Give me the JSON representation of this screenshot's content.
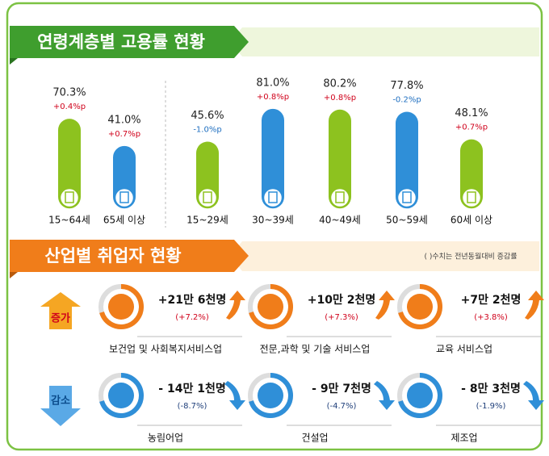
{
  "chart_data": {
    "type": "bar",
    "title": "연령계층별 고용률 현황",
    "categories": [
      "15~64세",
      "65세 이상",
      "15~29세",
      "30~39세",
      "40~49세",
      "50~59세",
      "60세 이상"
    ],
    "values": [
      70.3,
      41.0,
      45.6,
      81.0,
      80.2,
      77.8,
      48.1
    ],
    "value_labels": [
      "70.3%",
      "41.0%",
      "45.6%",
      "81.0%",
      "80.2%",
      "77.8%",
      "48.1%"
    ],
    "colors": [
      "#8dc21f",
      "#2f8fd8",
      "#8dc21f",
      "#2f8fd8",
      "#8dc21f",
      "#2f8fd8",
      "#8dc21f"
    ],
    "changes": [
      0.4,
      0.7,
      -1.0,
      0.8,
      0.8,
      -0.2,
      0.7
    ],
    "change_labels": [
      "+0.4%p",
      "+0.7%p",
      "-1.0%p",
      "+0.8%p",
      "+0.8%p",
      "-0.2%p",
      "+0.7%p"
    ]
  },
  "industry": {
    "title": "산업별 취업자 현황",
    "note": "( )수치는 전년동월대비 증감률",
    "rows": [
      {
        "label": "증가",
        "items": [
          {
            "change": "+21만 6천명",
            "rate": "(+7.2%)",
            "name": "보건업 및 사회복지서비스업"
          },
          {
            "change": "+10만 2천명",
            "rate": "(+7.3%)",
            "name": "전문,과학 및 기술 서비스업"
          },
          {
            "change": "+7만 2천명",
            "rate": "(+3.8%)",
            "name": "교육 서비스업"
          }
        ]
      },
      {
        "label": "감소",
        "items": [
          {
            "change": "- 14만 1천명",
            "rate": "(-8.7%)",
            "name": "농림어업"
          },
          {
            "change": "- 9만 7천명",
            "rate": "(-4.7%)",
            "name": "건설업"
          },
          {
            "change": "- 8만 3천명",
            "rate": "(-1.9%)",
            "name": "제조업"
          }
        ]
      }
    ]
  }
}
